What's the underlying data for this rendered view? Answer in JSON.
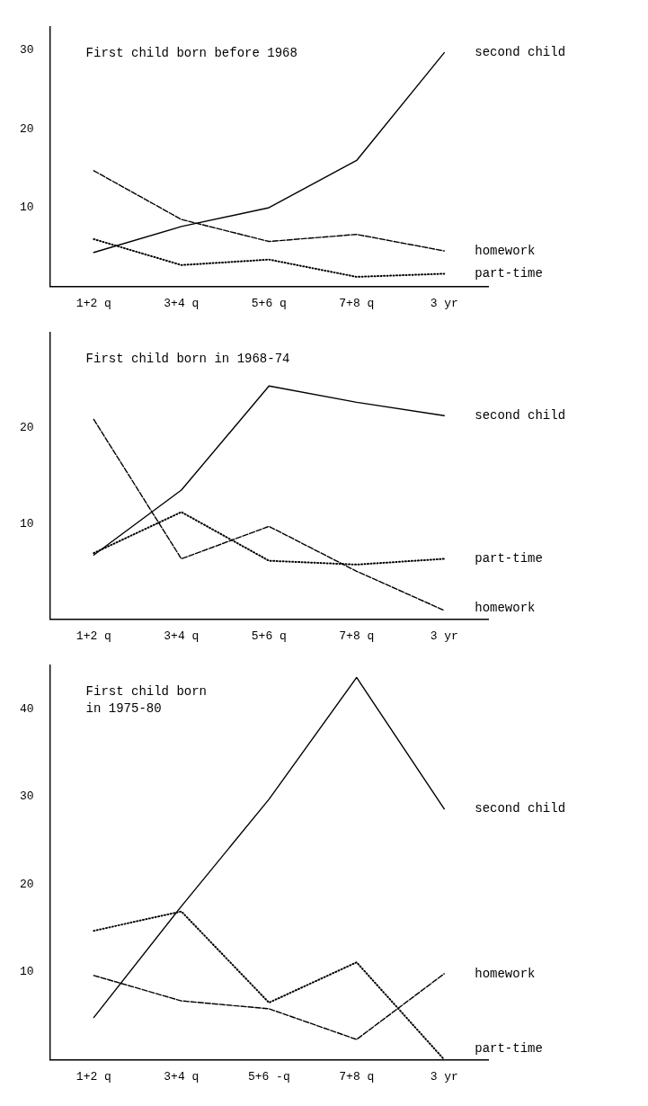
{
  "chart_data": [
    {
      "type": "line",
      "title": "First child born before 1968",
      "categories": [
        "1+2 q",
        "3+4 q",
        "5+6 q",
        "7+8 q",
        "3 yr"
      ],
      "ylim": [
        0,
        33
      ],
      "yticks": [
        10,
        20,
        30
      ],
      "grid": false,
      "marker": "none",
      "series": [
        {
          "name": "second child",
          "color": "#000000",
          "line_style": "solid",
          "values": [
            4.3,
            7.6,
            10,
            16,
            29.7
          ]
        },
        {
          "name": "homework",
          "color": "#000000",
          "line_style": "dashed",
          "values": [
            14.7,
            8.5,
            5.7,
            6.6,
            4.5
          ]
        },
        {
          "name": "part-time",
          "color": "#000000",
          "line_style": "dotted",
          "values": [
            6.0,
            2.7,
            3.4,
            1.2,
            1.6
          ]
        }
      ]
    },
    {
      "type": "line",
      "title": "First child born in 1968-74",
      "categories": [
        "1+2 q",
        "3+4 q",
        "5+6 q",
        "7+8 q",
        "3 yr"
      ],
      "ylim": [
        0,
        30
      ],
      "yticks": [
        10,
        20
      ],
      "grid": false,
      "marker": "none",
      "series": [
        {
          "name": "second child",
          "color": "#000000",
          "line_style": "solid",
          "values": [
            6.7,
            13.5,
            24.4,
            22.7,
            21.3
          ]
        },
        {
          "name": "part-time",
          "color": "#000000",
          "line_style": "dotted",
          "values": [
            6.9,
            11.2,
            6.1,
            5.7,
            6.3
          ]
        },
        {
          "name": "homework",
          "color": "#000000",
          "line_style": "dashed",
          "values": [
            20.9,
            6.3,
            9.7,
            5.0,
            0.9
          ]
        }
      ]
    },
    {
      "type": "line",
      "title": "First child born\nin 1975-80",
      "categories": [
        "1+2 q",
        "3+4 q",
        "5+6 -q",
        "7+8 q",
        "3 yr"
      ],
      "ylim": [
        0,
        45
      ],
      "yticks": [
        10,
        20,
        30,
        40
      ],
      "grid": false,
      "marker": "none",
      "series": [
        {
          "name": "second child",
          "color": "#000000",
          "line_style": "solid",
          "values": [
            4.8,
            17.5,
            29.7,
            43.6,
            28.6
          ]
        },
        {
          "name": "homework",
          "color": "#000000",
          "line_style": "dashed",
          "values": [
            9.6,
            6.7,
            5.8,
            2.3,
            9.8
          ]
        },
        {
          "name": "part-time",
          "color": "#000000",
          "line_style": "dotted",
          "values": [
            14.7,
            16.9,
            6.5,
            11.1,
            0
          ]
        }
      ]
    }
  ]
}
